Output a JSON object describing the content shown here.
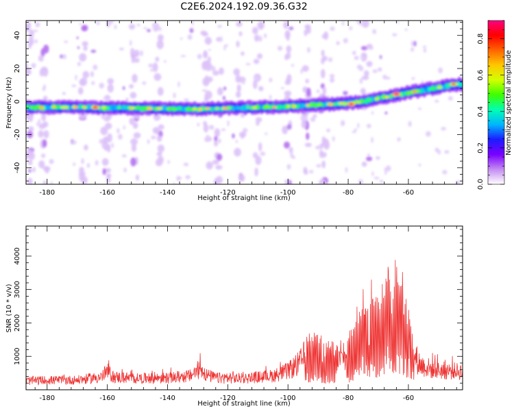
{
  "title": "C2E6.2024.192.09.36.G32",
  "chart_data": [
    {
      "type": "heatmap",
      "xlabel": "Height of straight line (km)",
      "ylabel": "Frequency (Hz)",
      "xlim": [
        -187,
        -42
      ],
      "ylim": [
        -50,
        49
      ],
      "x_ticks": [
        -180,
        -160,
        -140,
        -120,
        -100,
        -80,
        -60
      ],
      "y_ticks": [
        -40,
        -20,
        0,
        20,
        40
      ],
      "colorbar": {
        "label": "Normalized spectral amplitude",
        "range": [
          0,
          0.9
        ],
        "ticks": [
          0.0,
          0.2,
          0.4,
          0.6,
          0.8
        ],
        "colors": [
          "#ffffff",
          "#c48cf2",
          "#7a00ff",
          "#1c1cff",
          "#00b4ff",
          "#00ffb4",
          "#3cff00",
          "#d2ff00",
          "#ffc800",
          "#ff6400",
          "#ff0000",
          "#ff0082"
        ]
      },
      "ridge": {
        "x": [
          -187,
          -170,
          -150,
          -130,
          -120,
          -110,
          -100,
          -95,
          -90,
          -85,
          -80,
          -75,
          -70,
          -65,
          -60,
          -55,
          -50,
          -45,
          -43
        ],
        "freq_hz": [
          -3.5,
          -3.5,
          -4,
          -4.5,
          -4,
          -3.5,
          -3,
          -2.5,
          -2,
          -1.5,
          -1,
          0,
          2,
          3.5,
          5.5,
          7,
          8.5,
          10,
          10.5
        ],
        "peaks": [
          {
            "x": -164,
            "freq_hz": -3.5,
            "amp": 0.85
          },
          {
            "x": -131,
            "freq_hz": -4.5,
            "amp": 0.6
          },
          {
            "x": -79,
            "freq_hz": -1.5,
            "amp": 0.85
          },
          {
            "x": -64,
            "freq_hz": 4.5,
            "amp": 0.9
          },
          {
            "x": -58,
            "freq_hz": 6,
            "amp": 0.7
          },
          {
            "x": -45,
            "freq_hz": 10.5,
            "amp": 0.75
          }
        ]
      },
      "noise_columns_x": [
        -186,
        -181,
        -168,
        -160,
        -151,
        -143,
        -127,
        -123,
        -116,
        -110,
        -100,
        -94,
        -88,
        -74
      ]
    },
    {
      "type": "line",
      "xlabel": "Height of straight line (km)",
      "ylabel": "SNR (10 * v/v)",
      "xlim": [
        -187,
        -42
      ],
      "ylim": [
        0,
        4900
      ],
      "x_ticks": [
        -180,
        -160,
        -140,
        -120,
        -100,
        -80,
        -60
      ],
      "y_ticks": [
        1000,
        2000,
        3000,
        4000
      ],
      "color": "#ee3333",
      "envelope": {
        "x": [
          -187,
          -180,
          -170,
          -162,
          -160,
          -158,
          -150,
          -140,
          -132,
          -129,
          -127,
          -124,
          -115,
          -105,
          -102,
          -100,
          -96,
          -93,
          -91,
          -90,
          -88,
          -85,
          -83,
          -81,
          -79,
          -77,
          -75,
          -74,
          -72,
          -70,
          -68,
          -66,
          -64,
          -62,
          -60,
          -58,
          -56,
          -52,
          -48,
          -42
        ],
        "y": [
          400,
          420,
          430,
          560,
          820,
          560,
          500,
          520,
          620,
          980,
          650,
          520,
          500,
          620,
          750,
          820,
          1200,
          1800,
          2200,
          2000,
          1500,
          1700,
          1300,
          1400,
          2000,
          2800,
          3300,
          3000,
          3400,
          2900,
          3600,
          4000,
          4300,
          3600,
          2800,
          1500,
          1100,
          900,
          850,
          800
        ]
      }
    }
  ]
}
